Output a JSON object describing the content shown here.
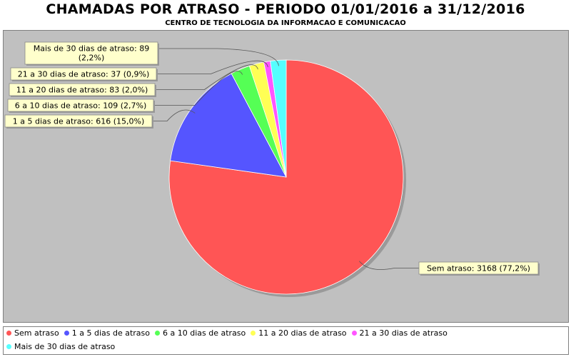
{
  "chart_data": {
    "type": "pie",
    "title": "CHAMADAS POR ATRASO - PERIODO 01/01/2016 a 31/12/2016",
    "subtitle": "CENTRO DE TECNOLOGIA DA INFORMACAO E COMUNICACAO",
    "legend_position": "bottom",
    "slices": [
      {
        "name": "Sem atraso",
        "value": 3168,
        "percent": "77,2%",
        "color": "#ff5555",
        "label": "Sem atraso: 3168 (77,2%)"
      },
      {
        "name": "1 a 5 dias de atraso",
        "value": 616,
        "percent": "15,0%",
        "color": "#5555ff",
        "label": "1 a 5 dias de atraso: 616 (15,0%)"
      },
      {
        "name": "6 a 10 dias de atraso",
        "value": 109,
        "percent": "2,7%",
        "color": "#55ff55",
        "label": "6 a 10 dias de atraso: 109 (2,7%)"
      },
      {
        "name": "11 a 20 dias de atraso",
        "value": 83,
        "percent": "2,0%",
        "color": "#ffff55",
        "label": "11 a 20 dias de atraso: 83 (2,0%)"
      },
      {
        "name": "21 a 30 dias de atraso",
        "value": 37,
        "percent": "0,9%",
        "color": "#ff55ff",
        "label": "21 a 30 dias de atraso: 37 (0,9%)"
      },
      {
        "name": "Mais de 30 dias de atraso",
        "value": 89,
        "percent": "2,2%",
        "color": "#55ffff",
        "label": "Mais de 30 dias de atraso: 89 (2,2%)"
      }
    ]
  }
}
